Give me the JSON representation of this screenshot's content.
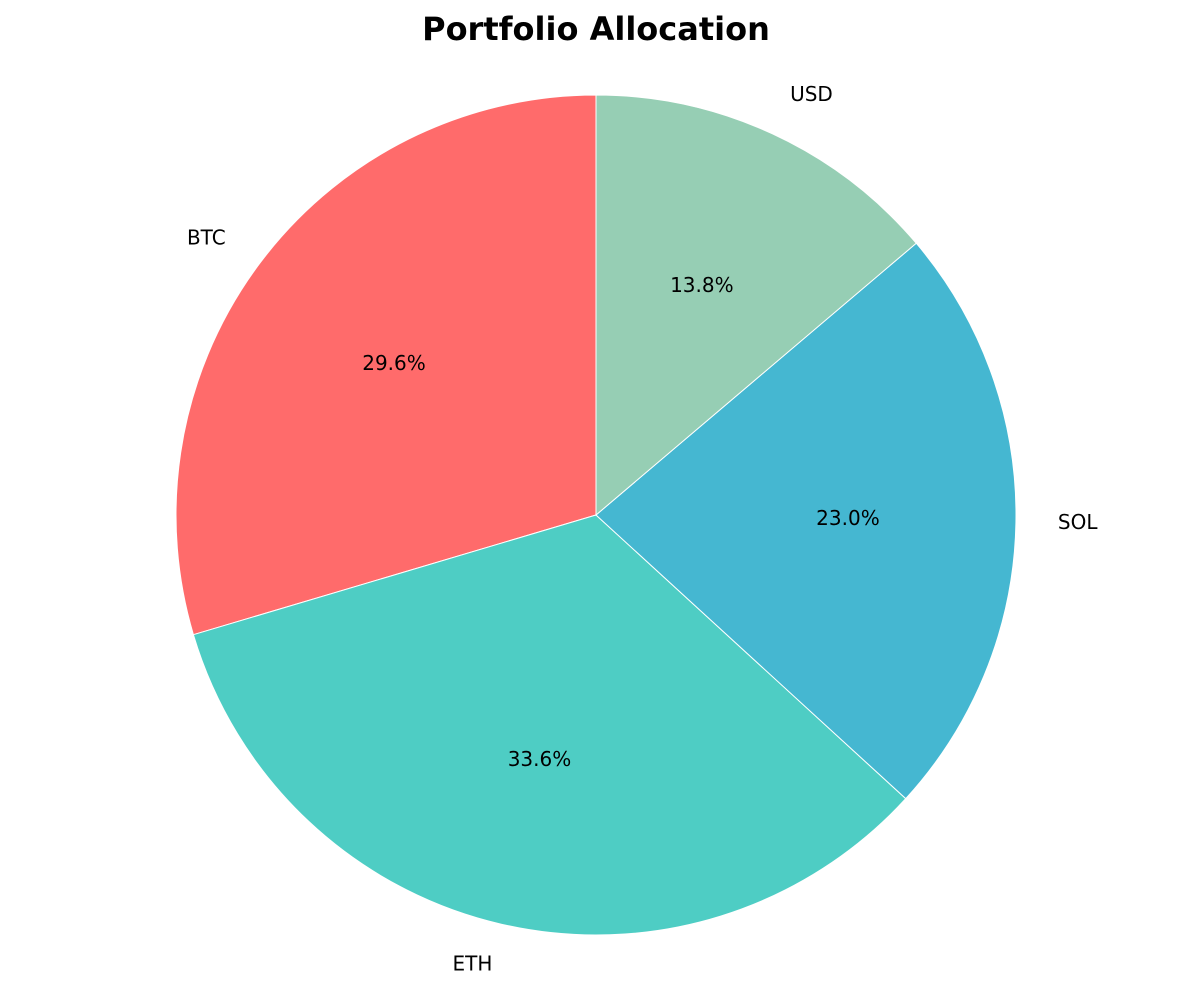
{
  "chart_data": {
    "type": "pie",
    "title": "Portfolio Allocation",
    "start_angle_deg": 90,
    "direction": "counterclockwise",
    "slices": [
      {
        "label": "BTC",
        "value": 29.6,
        "pct_label": "29.6%",
        "color": "#FF6B6B"
      },
      {
        "label": "ETH",
        "value": 33.6,
        "pct_label": "33.6%",
        "color": "#4ECDC4"
      },
      {
        "label": "SOL",
        "value": 23.0,
        "pct_label": "23.0%",
        "color": "#45B7D1"
      },
      {
        "label": "USD",
        "value": 13.8,
        "pct_label": "13.8%",
        "color": "#96CEB4"
      }
    ]
  }
}
